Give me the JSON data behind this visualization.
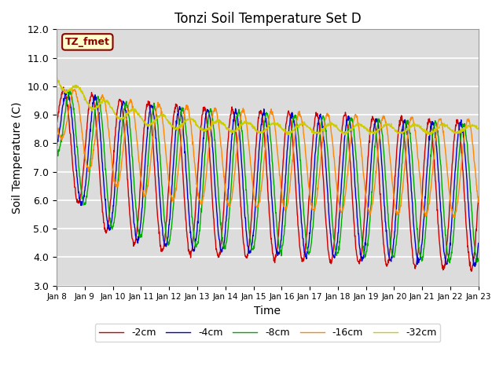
{
  "title": "Tonzi Soil Temperature Set D",
  "xlabel": "Time",
  "ylabel": "Soil Temperature (C)",
  "ylim": [
    3.0,
    12.0
  ],
  "yticks": [
    3.0,
    4.0,
    5.0,
    6.0,
    7.0,
    8.0,
    9.0,
    10.0,
    11.0,
    12.0
  ],
  "xtick_labels": [
    "Jan 8",
    "Jan 9",
    "Jan 10",
    "Jan 11",
    "Jan 12",
    "Jan 13",
    "Jan 14",
    "Jan 15",
    "Jan 16",
    "Jan 17",
    "Jan 18",
    "Jan 19",
    "Jan 20",
    "Jan 21",
    "Jan 22",
    "Jan 23"
  ],
  "annotation_text": "TZ_fmet",
  "annotation_bg": "#ffffcc",
  "annotation_border": "#8b0000",
  "legend_entries": [
    "-2cm",
    "-4cm",
    "-8cm",
    "-16cm",
    "-32cm"
  ],
  "line_colors": [
    "#cc0000",
    "#0000cc",
    "#00aa00",
    "#ff8800",
    "#cccc00"
  ],
  "bg_color": "#dcdcdc",
  "plot_bg_color": "#dcdcdc",
  "n_days": 15,
  "points_per_day": 96
}
